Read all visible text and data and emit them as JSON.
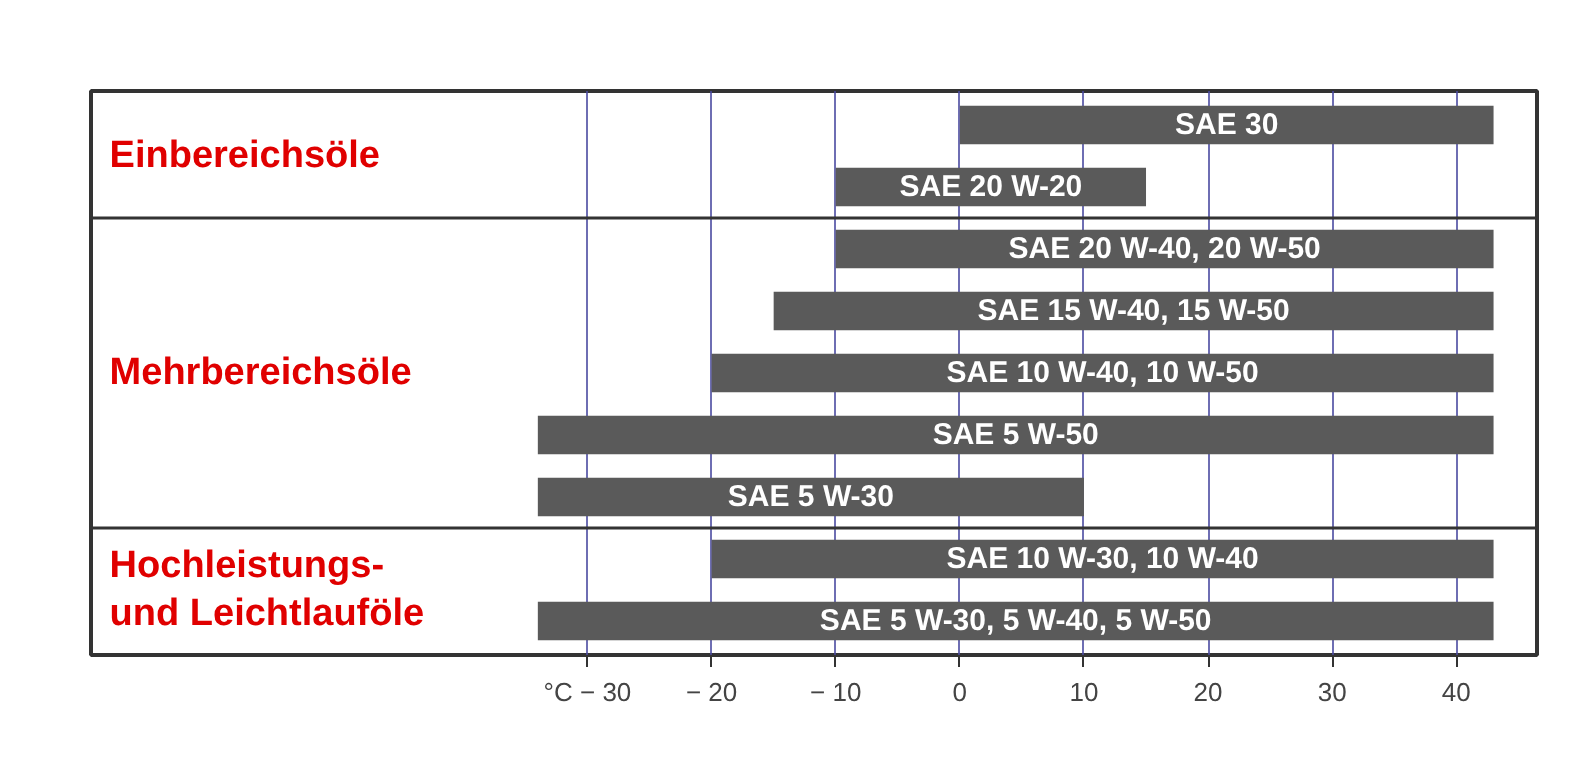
{
  "chart_data": {
    "type": "bar",
    "orientation": "horizontal",
    "categories": [
      "SAE 30",
      "SAE 20 W-20",
      "SAE 20 W-40, 20 W-50",
      "SAE 15 W-40, 15 W-50",
      "SAE 10 W-40, 10 W-50",
      "SAE 5 W-50",
      "SAE 5 W-30",
      "SAE 10 W-30, 10 W-40",
      "SAE 5 W-30, 5 W-40, 5 W-50"
    ],
    "base": [
      0,
      -10,
      -10,
      -15,
      -20,
      -34,
      -34,
      -20,
      -34
    ],
    "values": [
      43,
      25,
      53,
      58,
      63,
      77,
      44,
      63,
      77
    ],
    "color": "#5a5a5a",
    "xlim": [
      -70,
      46.5
    ],
    "xticks": [
      {
        "value": -30,
        "label": "°C − 30"
      },
      {
        "value": -20,
        "label": "− 20"
      },
      {
        "value": -10,
        "label": "− 10"
      },
      0,
      10,
      20,
      30,
      40
    ],
    "grid": "x",
    "tick_labels": "x",
    "annotations": [
      "Einbereichsöle",
      "Mehrbereichsöle",
      "Hochleistungs-\nund Leichtlauföle"
    ]
  }
}
